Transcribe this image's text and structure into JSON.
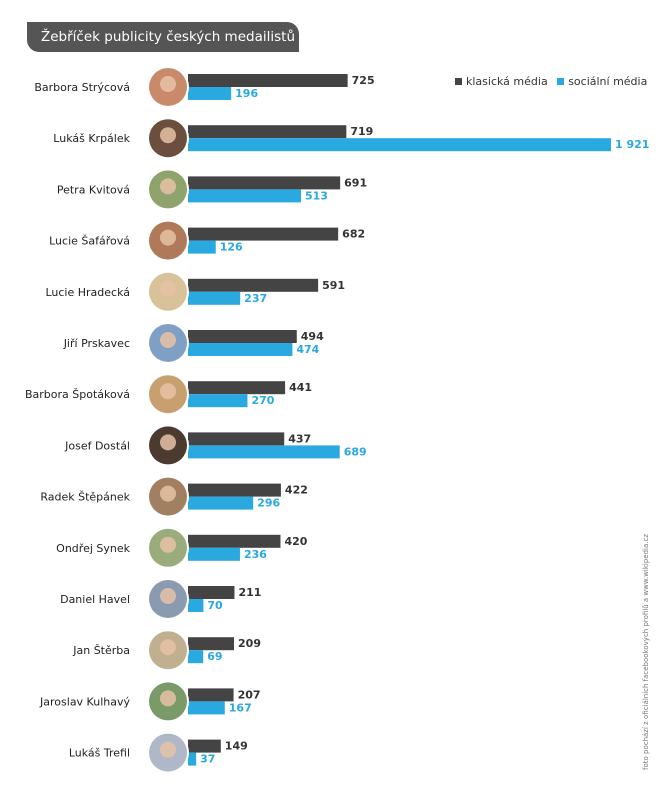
{
  "title": "Žebříček publicity českých medailistů",
  "legend": {
    "items": [
      {
        "label": "klasická média",
        "color": "#444444"
      },
      {
        "label": "sociální média",
        "color": "#29a9e0"
      }
    ]
  },
  "credit": "foto pochází z oficiálních facebookových profilů a www.wikipedia.cz",
  "colors": {
    "classic": "#444444",
    "social": "#29a9e0",
    "classic_label": "#333333",
    "social_label": "#29a9e0"
  },
  "chart_data": {
    "type": "bar",
    "orientation": "horizontal",
    "title": "Žebříček publicity českých medailistů",
    "categories": [
      "Barbora Strýcová",
      "Lukáš Krpálek",
      "Petra Kvitová",
      "Lucie Šafářová",
      "Lucie Hradecká",
      "Jiří Prskavec",
      "Barbora Špotáková",
      "Josef Dostál",
      "Radek Štěpánek",
      "Ondřej Synek",
      "Daniel Havel",
      "Jan Štěrba",
      "Jaroslav Kulhavý",
      "Lukáš Trefil"
    ],
    "series": [
      {
        "name": "klasická média",
        "values": [
          725,
          719,
          691,
          682,
          591,
          494,
          441,
          437,
          422,
          420,
          211,
          209,
          207,
          149
        ],
        "labels": [
          "725",
          "719",
          "691",
          "682",
          "591",
          "494",
          "441",
          "437",
          "422",
          "420",
          "211",
          "209",
          "207",
          "149"
        ]
      },
      {
        "name": "sociální média",
        "values": [
          196,
          1921,
          513,
          126,
          237,
          474,
          270,
          689,
          296,
          236,
          70,
          69,
          167,
          37
        ],
        "labels": [
          "196",
          "1 921",
          "513",
          "126",
          "237",
          "474",
          "270",
          "689",
          "296",
          "236",
          "70",
          "69",
          "167",
          "37"
        ]
      }
    ],
    "xlim": [
      0,
      1921
    ],
    "grid": false,
    "legend_position": "top-right"
  }
}
